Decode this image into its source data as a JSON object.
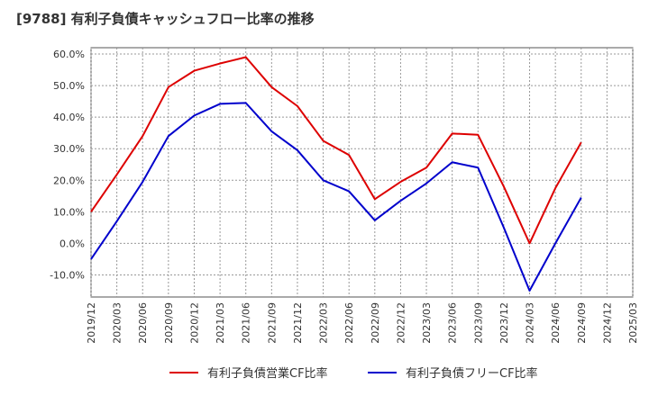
{
  "title": "[9788]  有利子負債キャッシュフロー比率の推移",
  "colors": {
    "series1": "#dd0000",
    "series2": "#0000cc",
    "grid": "#999999"
  },
  "chart_data": {
    "type": "line",
    "title": "[9788]  有利子負債キャッシュフロー比率の推移",
    "xlabel": "",
    "ylabel": "",
    "ylim": [
      -17,
      62
    ],
    "y_ticks": [
      60,
      50,
      40,
      30,
      20,
      10,
      0,
      -10
    ],
    "y_tick_labels": [
      "60.0%",
      "50.0%",
      "40.0%",
      "30.0%",
      "20.0%",
      "10.0%",
      "0.0%",
      "-10.0%"
    ],
    "categories": [
      "2019/12",
      "2020/03",
      "2020/06",
      "2020/09",
      "2020/12",
      "2021/03",
      "2021/06",
      "2021/09",
      "2021/12",
      "2022/03",
      "2022/06",
      "2022/09",
      "2022/12",
      "2023/03",
      "2023/06",
      "2023/09",
      "2023/12",
      "2024/03",
      "2024/06",
      "2024/09",
      "2024/12",
      "2025/03"
    ],
    "grid": true,
    "legend_position": "bottom",
    "series": [
      {
        "name": "有利子負債営業CF比率",
        "values": [
          10.0,
          21.8,
          34.0,
          49.5,
          54.7,
          57.0,
          59.0,
          49.5,
          43.5,
          32.5,
          28.0,
          14.0,
          19.5,
          24.0,
          34.8,
          34.4,
          18.0,
          0.0,
          17.5,
          32.0,
          null,
          null
        ]
      },
      {
        "name": "有利子負債フリーCF比率",
        "values": [
          -5.0,
          7.0,
          19.5,
          34.0,
          40.5,
          44.2,
          44.5,
          35.5,
          29.5,
          20.0,
          16.5,
          7.3,
          13.5,
          19.0,
          25.7,
          24.0,
          5.0,
          -15.0,
          0.0,
          14.5,
          null,
          null
        ]
      }
    ]
  }
}
